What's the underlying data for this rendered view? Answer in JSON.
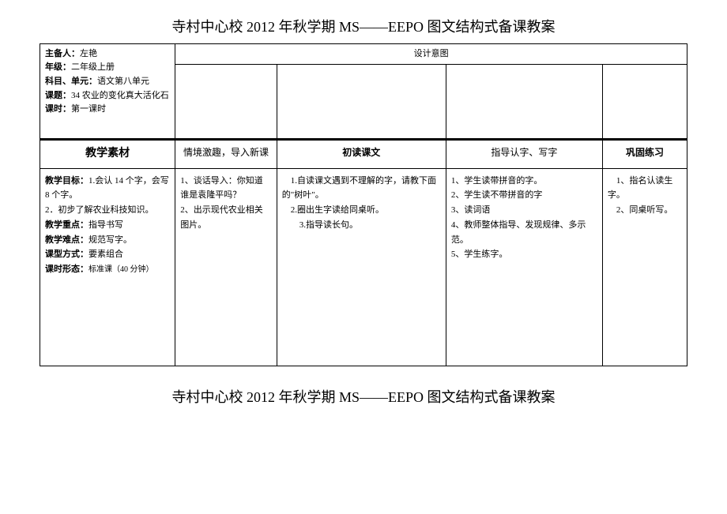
{
  "title_top": "寺村中心校 2012 年秋学期 MS——EEPO 图文结构式备课教案",
  "title_bottom": "寺村中心校 2012 年秋学期 MS——EEPO 图文结构式备课教案",
  "design_intent": "设计意图",
  "meta": {
    "labels": {
      "zhuberen": "主备人：",
      "nianji": "年级：",
      "kemu": "科目、单元：",
      "keti": "课题：",
      "keshi": "课时："
    },
    "zhuberen": "左艳",
    "nianji": "二年级上册",
    "kemu": "语文第八单元",
    "keti": "34 农业的变化真大活化石",
    "keshi": "第一课时"
  },
  "headers": {
    "col1": "教学素材",
    "col2": "情境激趣，导入新课",
    "col3": "初读课文",
    "col4": "指导认字、写字",
    "col5": "巩固练习"
  },
  "body": {
    "col1": {
      "mubiao_label": "教学目标：",
      "mubiao_text": "1.会认 14 个字，会写 8 个字。\n2．初步了解农业科技知识。",
      "zhongdian_label": "教学重点：",
      "zhongdian_text": "指导书写",
      "nandian_label": "教学难点：",
      "nandian_text": "规范写字。",
      "kexing_label": "课型方式：",
      "kexing_text": "要素组合",
      "xingtai_label": "课时形态：",
      "xingtai_text": "标准课（40 分钟）"
    },
    "col2": "1、谈话导入：你知道谁是袁隆平吗？\n2、出示现代农业相关图片。",
    "col3": "　1.自读课文遇到不理解的字，请教下面的\"树叶\"。\n　2.圈出生字读给同桌听。\n　　3.指导读长句。",
    "col4": "1、学生读带拼音的字。\n2、学生读不带拼音的字\n3、读词语\n4、教师整体指导、发现规律、多示范。\n5、学生练字。",
    "col5": "　1、指名认读生字。\n　2、同桌听写。"
  }
}
